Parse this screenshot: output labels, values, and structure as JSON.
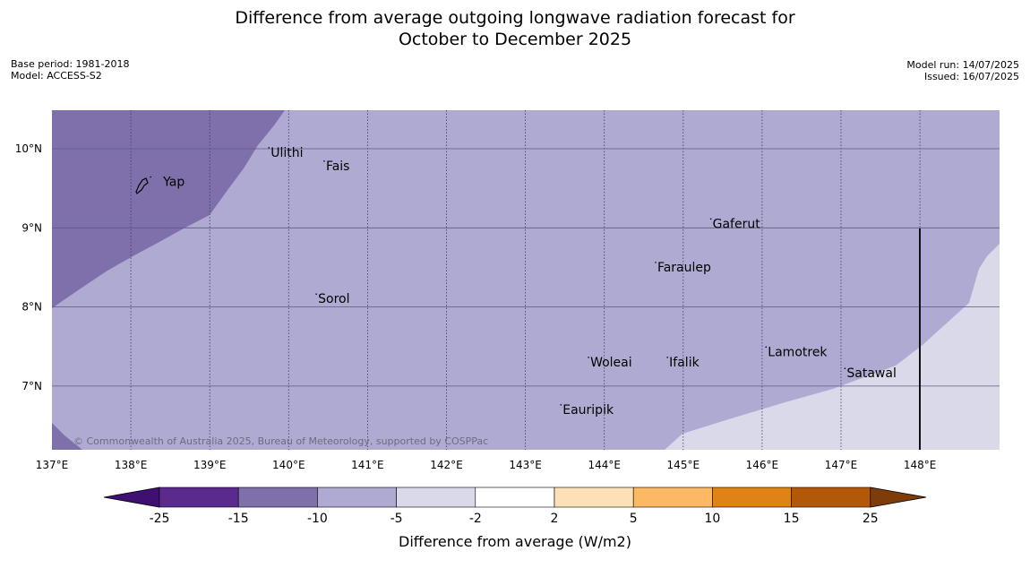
{
  "title": {
    "line1": "Difference from average outgoing longwave radiation forecast for",
    "line2": "October to December 2025"
  },
  "meta": {
    "base_period": "Base period: 1981-2018",
    "model": "Model: ACCESS-S2",
    "model_run": "Model run: 14/07/2025",
    "issued": "Issued: 16/07/2025"
  },
  "map": {
    "lon_range": [
      137,
      149
    ],
    "lat_range": [
      6.2,
      10.5
    ],
    "lon_ticks": [
      "137°E",
      "138°E",
      "139°E",
      "140°E",
      "141°E",
      "142°E",
      "143°E",
      "144°E",
      "145°E",
      "146°E",
      "147°E",
      "148°E"
    ],
    "lat_ticks": [
      "10°N",
      "9°N",
      "8°N",
      "7°N"
    ],
    "places": [
      {
        "name": "Yap",
        "lon": 138.25,
        "lat": 9.53
      },
      {
        "name": "Ulithi",
        "lon": 139.75,
        "lat": 9.9
      },
      {
        "name": "Fais",
        "lon": 140.45,
        "lat": 9.73
      },
      {
        "name": "Gaferut",
        "lon": 145.35,
        "lat": 9.0
      },
      {
        "name": "Faraulep",
        "lon": 144.65,
        "lat": 8.45
      },
      {
        "name": "Sorol",
        "lon": 140.35,
        "lat": 8.05
      },
      {
        "name": "Lamotrek",
        "lon": 146.05,
        "lat": 7.38
      },
      {
        "name": "Woleai",
        "lon": 143.8,
        "lat": 7.25
      },
      {
        "name": "Ifalik",
        "lon": 144.8,
        "lat": 7.25
      },
      {
        "name": "Satawal",
        "lon": 147.05,
        "lat": 7.11
      },
      {
        "name": "Eauripik",
        "lon": 143.45,
        "lat": 6.65
      }
    ],
    "copyright": "© Commonwealth of Australia 2025, Bureau of Meteorology, supported by COSPPac",
    "fill_colors": {
      "minus15_to_minus10": "#7f70ab",
      "minus10_to_minus5": "#afaad1",
      "minus5_to_minus2": "#d9d9ea"
    }
  },
  "colorbar": {
    "label": "Difference from average (W/m2)",
    "ticks": [
      "-25",
      "-15",
      "-10",
      "-5",
      "-2",
      "2",
      "5",
      "10",
      "15",
      "25"
    ],
    "colors": [
      "#3f0f72",
      "#5b2a8e",
      "#7f70ab",
      "#afaad1",
      "#d9d9ea",
      "#ffffff",
      "#fee0b6",
      "#fdb863",
      "#e08214",
      "#b35806",
      "#7f3b08"
    ]
  }
}
